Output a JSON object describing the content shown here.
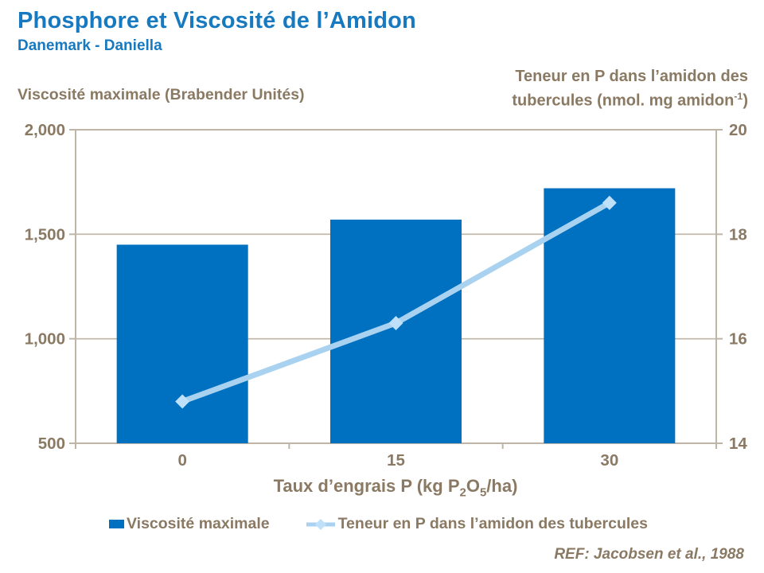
{
  "header": {
    "title": "Phosphore et Viscosité de l’Amidon",
    "subtitle": "Danemark - Daniella"
  },
  "left_axis": {
    "label": "Viscosité maximale (Brabender Unités)",
    "ticks": [
      {
        "label": "2,000",
        "value": 2000
      },
      {
        "label": "1,500",
        "value": 1500
      },
      {
        "label": "1,000",
        "value": 1000
      },
      {
        "label": "500",
        "value": 500
      }
    ]
  },
  "right_axis": {
    "label_line1": "Teneur en P dans l’amidon des",
    "label_line2_pre": "tubercules (nmol. mg amidon",
    "label_line2_sup": "-1",
    "label_line2_post": ")",
    "ticks": [
      {
        "label": "20",
        "value": 20
      },
      {
        "label": "18",
        "value": 18
      },
      {
        "label": "16",
        "value": 16
      },
      {
        "label": "14",
        "value": 14
      }
    ]
  },
  "x_axis": {
    "title_pre": "Taux d’engrais P (kg P",
    "title_sub1": "2",
    "title_mid": "O",
    "title_sub2": "5",
    "title_post": "/ha)",
    "categories": [
      "0",
      "15",
      "30"
    ]
  },
  "legend": {
    "items": [
      {
        "label": "Viscosité maximale",
        "marker": "square"
      },
      {
        "label": "Teneur en P dans l’amidon des tubercules",
        "marker": "line-diamond"
      }
    ]
  },
  "footer": {
    "ref": "REF: Jacobsen et al., 1988"
  },
  "colors": {
    "title_blue": "#1779BF",
    "text_brown": "#8A7963",
    "axis_line": "#BFB5A6",
    "bar_blue": "#0070C0",
    "line_blue": "#A8D2F0",
    "marker_blue": "#BEE0F8"
  },
  "chart_data": {
    "type": "bar+line",
    "title": "Phosphore et Viscosité de l’Amidon",
    "subtitle": "Danemark - Daniella",
    "categories": [
      "0",
      "15",
      "30"
    ],
    "xlabel": "Taux d’engrais P (kg P2O5/ha)",
    "left_ylabel": "Viscosité maximale (Brabender Unités)",
    "right_ylabel": "Teneur en P dans l’amidon des tubercules (nmol. mg amidon-1)",
    "left_ylim": [
      500,
      2000
    ],
    "right_ylim": [
      14,
      20
    ],
    "left_yticks": [
      2000,
      1500,
      1000,
      500
    ],
    "right_yticks": [
      20,
      18,
      16,
      14
    ],
    "grid": true,
    "legend_position": "bottom",
    "annotation": "REF: Jacobsen et al., 1988",
    "series": [
      {
        "name": "Viscosité maximale",
        "kind": "bar",
        "axis": "left",
        "values": [
          1450,
          1570,
          1720
        ],
        "color": "#0070C0"
      },
      {
        "name": "Teneur en P dans l’amidon des tubercules",
        "kind": "line",
        "axis": "right",
        "values": [
          14.8,
          16.3,
          18.6
        ],
        "color": "#A8D2F0",
        "marker": "diamond",
        "marker_color": "#BEE0F8"
      }
    ]
  }
}
